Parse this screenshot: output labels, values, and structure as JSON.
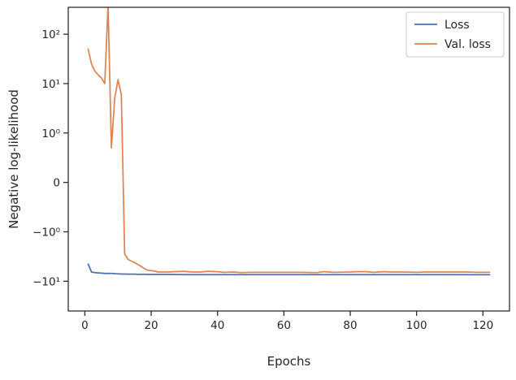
{
  "chart_data": {
    "type": "line",
    "xlabel": "Epochs",
    "ylabel": "Negative log-likelihood",
    "y_scale": "symlog",
    "xlim": [
      -5,
      128
    ],
    "ylim": [
      -40,
      350
    ],
    "x_ticks": [
      0,
      20,
      40,
      60,
      80,
      100,
      120
    ],
    "x_tick_labels": [
      "0",
      "20",
      "40",
      "60",
      "80",
      "100",
      "120"
    ],
    "y_ticks": [
      100,
      10,
      1,
      0,
      -1,
      -10
    ],
    "y_tick_labels": [
      "10²",
      "10¹",
      "10⁰",
      "0",
      "−10⁰",
      "−10¹"
    ],
    "grid": false,
    "legend_position": "top-right",
    "series": [
      {
        "name": "Loss",
        "color": "#4c72b0",
        "x": [
          1,
          2,
          3,
          4,
          5,
          6,
          7,
          8,
          9,
          10,
          11,
          12,
          13,
          14,
          15,
          16,
          17,
          18,
          19,
          20,
          22,
          25,
          30,
          40,
          50,
          60,
          70,
          80,
          90,
          100,
          110,
          122
        ],
        "y": [
          -4.5,
          -6.5,
          -6.7,
          -6.8,
          -6.85,
          -6.95,
          -6.95,
          -6.95,
          -7.0,
          -7.1,
          -7.15,
          -7.15,
          -7.2,
          -7.2,
          -7.2,
          -7.25,
          -7.25,
          -7.25,
          -7.3,
          -7.3,
          -7.3,
          -7.3,
          -7.35,
          -7.35,
          -7.35,
          -7.35,
          -7.35,
          -7.35,
          -7.35,
          -7.35,
          -7.35,
          -7.4
        ]
      },
      {
        "name": "Val. loss",
        "color": "#dd8452",
        "x": [
          1,
          2,
          3,
          4,
          5,
          6,
          7,
          8,
          9,
          10,
          11,
          12,
          13,
          14,
          15,
          16,
          17,
          18,
          19,
          20,
          21,
          22,
          23,
          25,
          27,
          30,
          32,
          35,
          37,
          40,
          42,
          45,
          47,
          50,
          55,
          60,
          65,
          70,
          72,
          75,
          80,
          82,
          85,
          87,
          90,
          92,
          95,
          100,
          102,
          105,
          107,
          110,
          112,
          115,
          118,
          122
        ],
        "y": [
          50,
          25,
          18,
          15,
          13,
          10,
          400,
          0.7,
          5,
          12,
          6,
          -2.8,
          -3.6,
          -3.9,
          -4.2,
          -4.6,
          -5.0,
          -5.6,
          -6.0,
          -6.1,
          -6.2,
          -6.5,
          -6.5,
          -6.5,
          -6.4,
          -6.3,
          -6.5,
          -6.5,
          -6.3,
          -6.4,
          -6.6,
          -6.5,
          -6.7,
          -6.6,
          -6.6,
          -6.6,
          -6.6,
          -6.7,
          -6.4,
          -6.6,
          -6.5,
          -6.4,
          -6.4,
          -6.6,
          -6.4,
          -6.5,
          -6.5,
          -6.6,
          -6.5,
          -6.5,
          -6.5,
          -6.5,
          -6.5,
          -6.5,
          -6.6,
          -6.6
        ]
      }
    ]
  }
}
